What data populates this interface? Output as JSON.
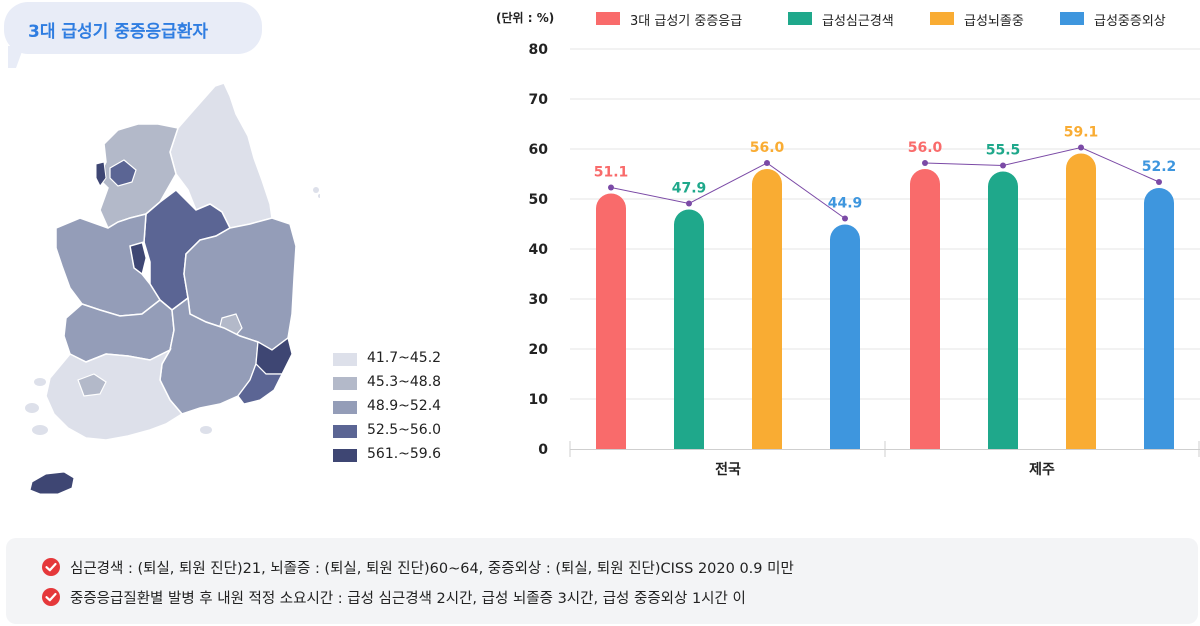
{
  "title": "3대 급성기 중증응급환자",
  "map_legend": [
    {
      "label": "41.7~45.2",
      "color": "#dde0ea"
    },
    {
      "label": "45.3~48.8",
      "color": "#b3b9c9"
    },
    {
      "label": "48.9~52.4",
      "color": "#949db8"
    },
    {
      "label": "52.5~56.0",
      "color": "#5b6594"
    },
    {
      "label": "561.~59.6",
      "color": "#3e4673"
    }
  ],
  "chart_data": {
    "type": "bar",
    "unit_label": "(단위 : %)",
    "categories": [
      "전국",
      "제주"
    ],
    "series": [
      {
        "name": "3대 급성기 중증응급",
        "color": "#f96b6b",
        "values": [
          51.1,
          56.0
        ]
      },
      {
        "name": "급성심근경색",
        "color": "#1fa88b",
        "values": [
          47.9,
          55.5
        ]
      },
      {
        "name": "급성뇌졸중",
        "color": "#f9ac33",
        "values": [
          56.0,
          59.1
        ]
      },
      {
        "name": "급성중증외상",
        "color": "#3e96de",
        "values": [
          44.9,
          52.2
        ]
      }
    ],
    "ylim": [
      0,
      80
    ],
    "yticks": [
      "0",
      "10",
      "20",
      "30",
      "40",
      "50",
      "60",
      "70",
      "80"
    ],
    "grid": true,
    "legend_position": "top",
    "value_labels": [
      "51.1",
      "47.9",
      "56.0",
      "44.9",
      "56.0",
      "55.5",
      "59.1",
      "52.2"
    ],
    "connector_line_color": "#7b4aa6"
  },
  "notes": [
    "심근경색 : (퇴실, 퇴원 진단)21, 뇌졸증 : (퇴실, 퇴원 진단)60~64, 중증외상 : (퇴실, 퇴원 진단)CISS 2020 0.9 미만",
    "중증응급질환별 발병 후 내원 적정 소요시간 : 급성 심근경색 2시간, 급성 뇌졸증 3시간, 급성 중증외상 1시간 이"
  ]
}
